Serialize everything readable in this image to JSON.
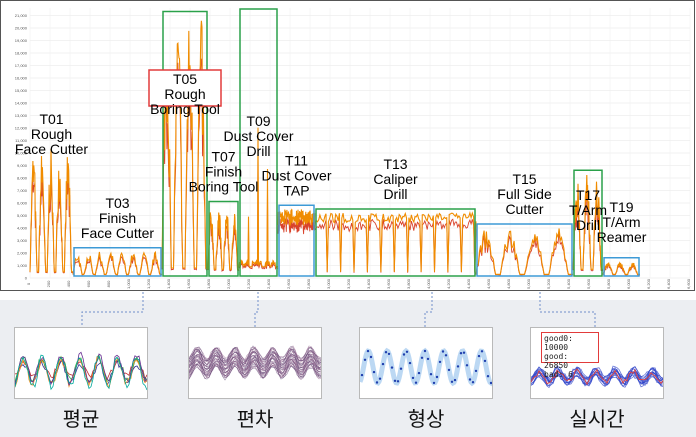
{
  "chart_data": {
    "type": "line",
    "title": "",
    "xlabel": "",
    "ylabel": "",
    "y_ticks": [
      "0",
      "1,000",
      "2,000",
      "3,000",
      "4,000",
      "5,000",
      "6,000",
      "7,000",
      "8,000",
      "9,000",
      "10,000",
      "11,000",
      "12,000",
      "13,000",
      "14,000",
      "15,000",
      "16,000",
      "17,000",
      "18,000",
      "19,000",
      "20,000",
      "21,000"
    ],
    "ylim": [
      0,
      21600
    ],
    "x_ticks": [
      "0",
      "200",
      "400",
      "600",
      "800",
      "1,000",
      "1,200",
      "1,400",
      "1,600",
      "1,800",
      "2,000",
      "2,200",
      "2,400",
      "2,600",
      "2,800",
      "3,000",
      "3,200",
      "3,400",
      "3,600",
      "3,800",
      "4,000",
      "4,200",
      "4,400",
      "4,600",
      "4,800",
      "5,000",
      "5,200",
      "5,400",
      "5,600",
      "5,800",
      "6,000",
      "6,200",
      "6,400",
      "6,600"
    ],
    "xlim": [
      0,
      6600
    ],
    "segments": [
      {
        "id": "T01",
        "lines": [
          "T01",
          "Rough",
          "Face Cutter"
        ],
        "x_start": 0,
        "x_end": 430,
        "peak": 10500,
        "base": 500,
        "cycles": 5,
        "box": "none"
      },
      {
        "id": "T03",
        "lines": [
          "T03",
          "Finish",
          "Face Cutter"
        ],
        "x_start": 430,
        "x_end": 1320,
        "peak": 2100,
        "base": 300,
        "cycles": 8,
        "box": "blue"
      },
      {
        "id": "T05",
        "lines": [
          "T05",
          "Rough",
          "Boring Tool"
        ],
        "x_start": 1320,
        "x_end": 1780,
        "peak": 21000,
        "base": 800,
        "cycles": 4,
        "box": "green"
      },
      {
        "id": "T07",
        "lines": [
          "T07",
          "Finish",
          "Boring Tool"
        ],
        "x_start": 1780,
        "x_end": 2090,
        "peak": 5800,
        "base": 700,
        "cycles": 4,
        "box": "green"
      },
      {
        "id": "T09",
        "lines": [
          "T09",
          "Dust Cover",
          "Drill"
        ],
        "x_start": 2090,
        "x_end": 2480,
        "peak": 21500,
        "base": 900,
        "cycles": 3,
        "box": "green"
      },
      {
        "id": "T11",
        "lines": [
          "T11",
          "Dust Cover",
          "TAP"
        ],
        "x_start": 2480,
        "x_end": 2850,
        "peak": 5500,
        "base": 4200,
        "cycles": 10,
        "box": "blue"
      },
      {
        "id": "T13",
        "lines": [
          "T13",
          "Caliper",
          "Drill"
        ],
        "x_start": 2850,
        "x_end": 4460,
        "peak": 5200,
        "base": 500,
        "cycles": 12,
        "box": "green"
      },
      {
        "id": "T15",
        "lines": [
          "T15",
          "Full Side",
          "Cutter"
        ],
        "x_start": 4460,
        "x_end": 5430,
        "peak": 4000,
        "base": 300,
        "cycles": 4,
        "box": "blue"
      },
      {
        "id": "T17",
        "lines": [
          "T17",
          "T/Arm",
          "Drill"
        ],
        "x_start": 5430,
        "x_end": 5730,
        "peak": 8300,
        "base": 700,
        "cycles": 3,
        "box": "green"
      },
      {
        "id": "T19",
        "lines": [
          "T19",
          "T/Arm",
          "Reamer"
        ],
        "x_start": 5730,
        "x_end": 6100,
        "peak": 1300,
        "base": 300,
        "cycles": 3,
        "box": "blue"
      }
    ]
  },
  "thumbnails": [
    {
      "label": "평균",
      "kind": "mean"
    },
    {
      "label": "편차",
      "kind": "deviation"
    },
    {
      "label": "형상",
      "kind": "shape"
    },
    {
      "label": "실시간",
      "kind": "realtime"
    }
  ],
  "realtime_box": {
    "line1": "good0: 10000",
    "line2": "good: 26850",
    "line3": "bad: 6"
  },
  "colors": {
    "main_line": "#f08c00",
    "secondary_line": "#d9432b",
    "blue_box": "#3d9ad6",
    "green_box": "#2aa14a",
    "red_box": "#e23b3b",
    "connector": "#6f8fc9"
  }
}
